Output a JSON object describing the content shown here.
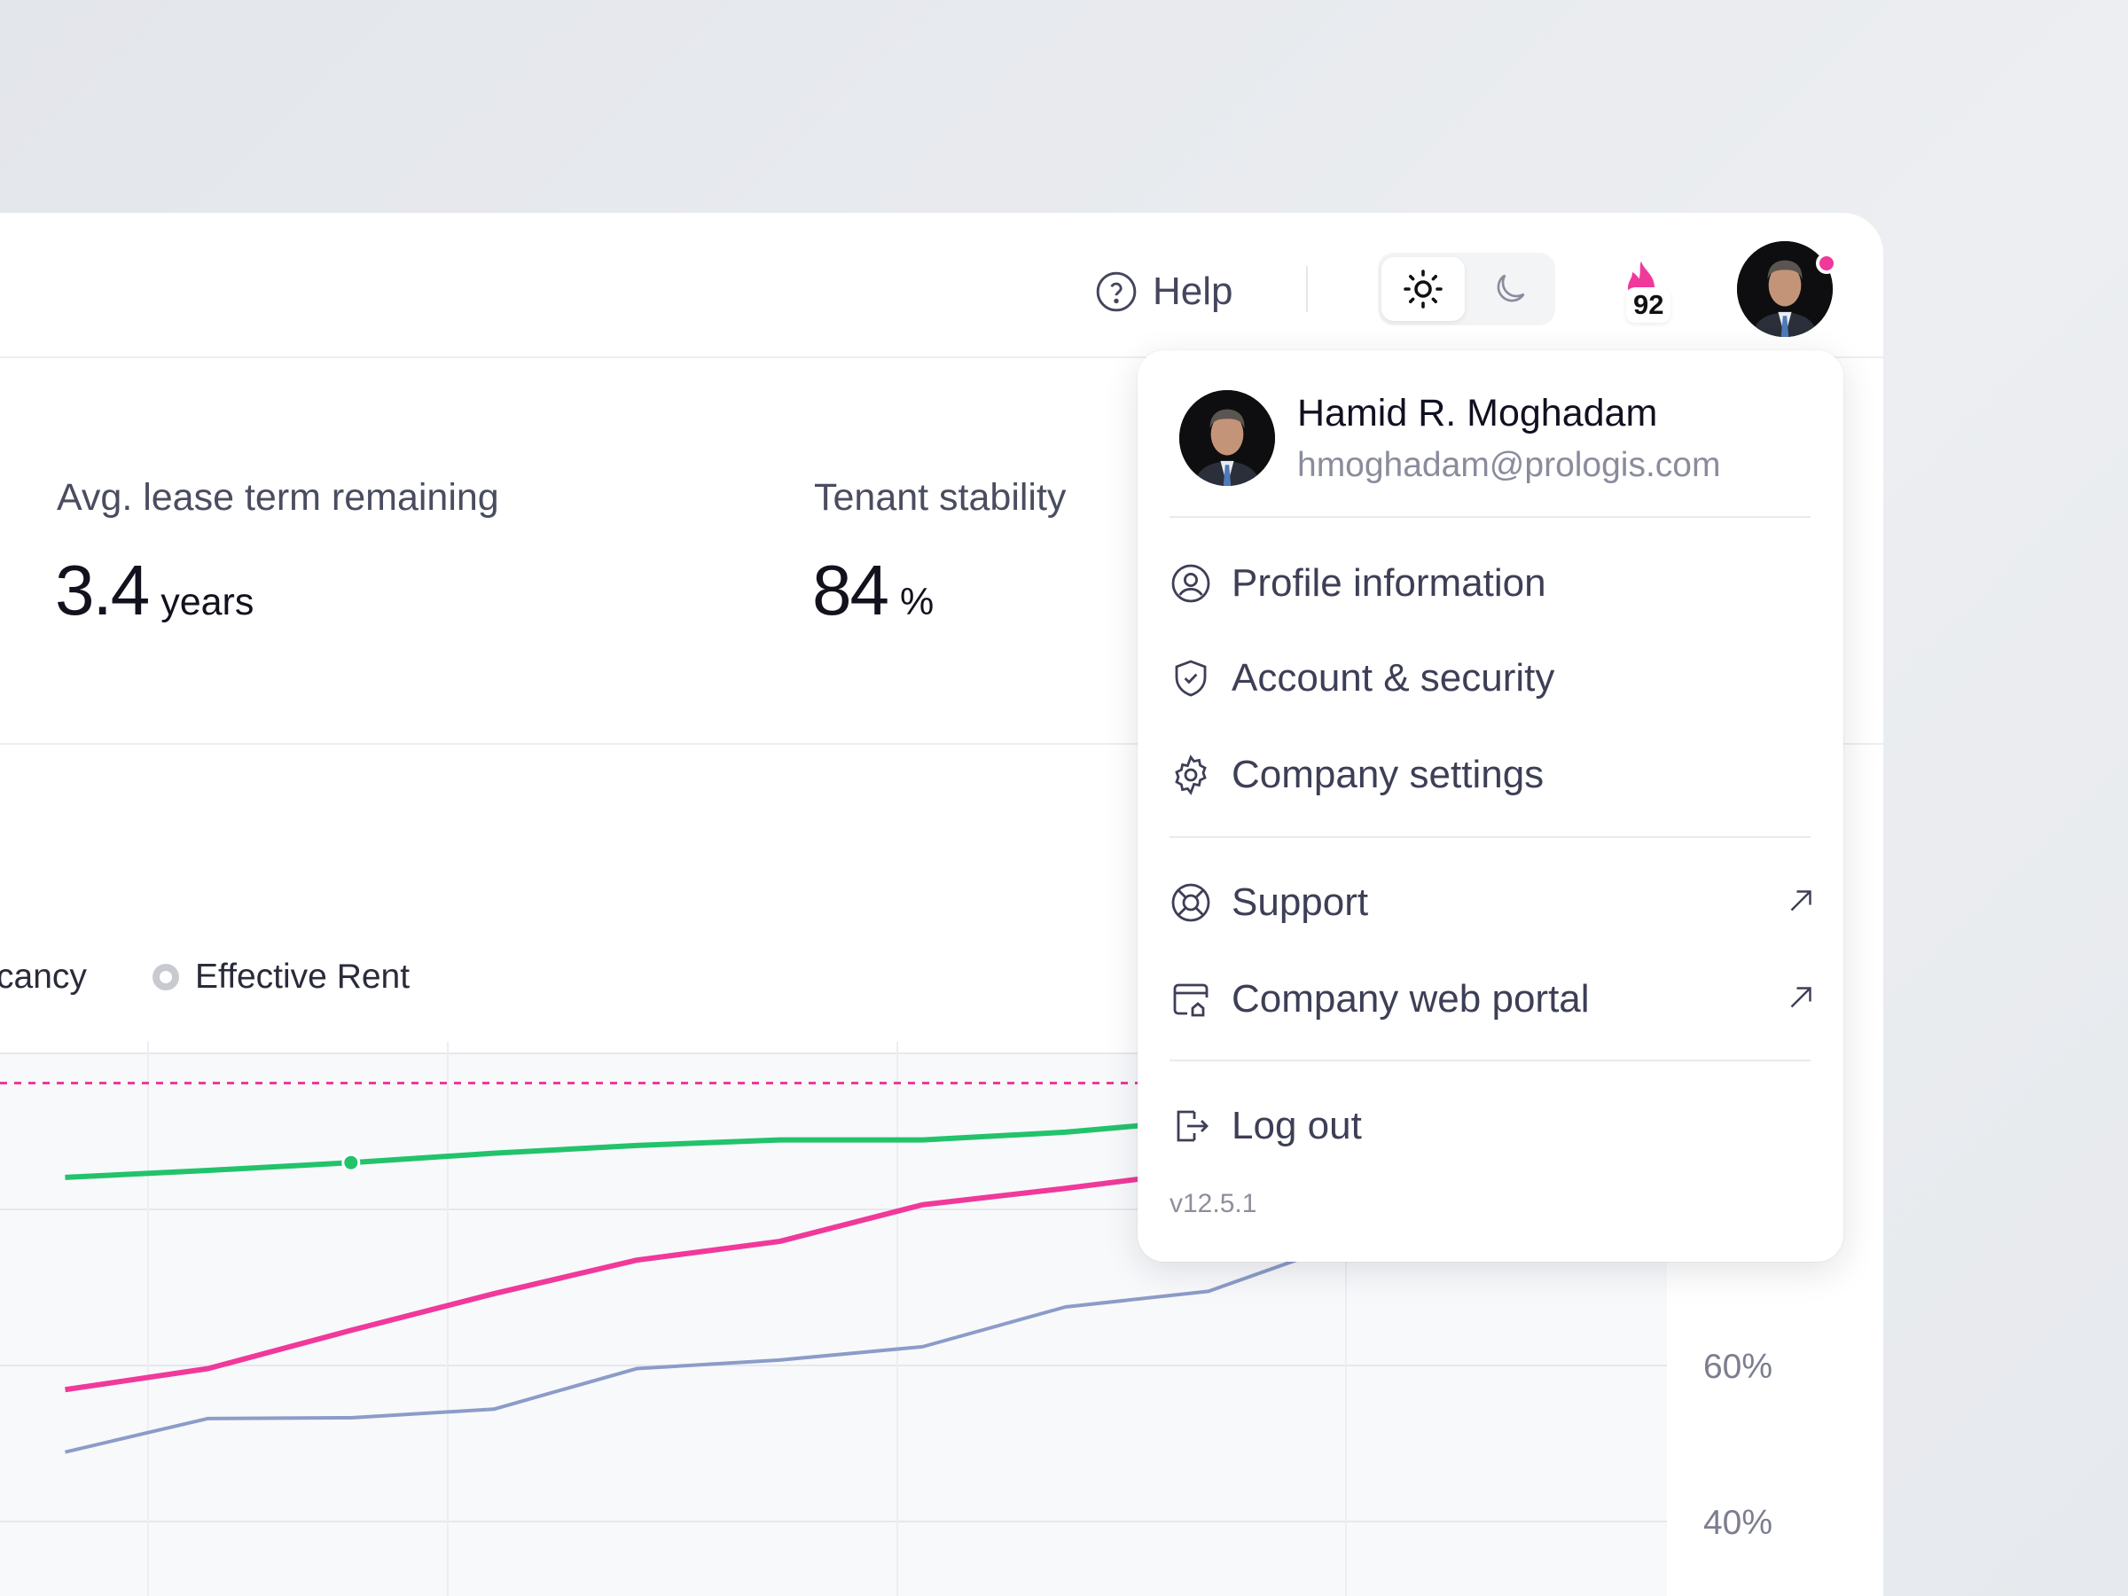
{
  "header": {
    "help_label": "Help",
    "theme": {
      "active": "light",
      "options": [
        "light",
        "dark"
      ]
    },
    "streak_count": "92",
    "notification_dot_color": "#f0399a"
  },
  "stats": [
    {
      "label": "Avg. lease term remaining",
      "value": "3.4",
      "unit": "years"
    },
    {
      "label": "Tenant stability",
      "value": "84",
      "unit": "%"
    }
  ],
  "legend": [
    {
      "label": "cancy"
    },
    {
      "label": "Effective Rent"
    }
  ],
  "user_menu": {
    "name": "Hamid R. Moghadam",
    "email": "hmoghadam@prologis.com",
    "items": [
      {
        "label": "Profile information",
        "icon": "user-circle-icon"
      },
      {
        "label": "Account & security",
        "icon": "shield-check-icon"
      },
      {
        "label": "Company settings",
        "icon": "gear-icon"
      },
      {
        "label": "Support",
        "icon": "lifebuoy-icon",
        "external": true
      },
      {
        "label": "Company web portal",
        "icon": "browser-icon",
        "external": true
      },
      {
        "label": "Log out",
        "icon": "logout-icon"
      }
    ],
    "version": "v12.5.1"
  },
  "chart_data": {
    "type": "line",
    "y_tick_labels": [
      "60%",
      "40%"
    ],
    "grid": true,
    "x": [
      0,
      1,
      2,
      3,
      4,
      5,
      6,
      7,
      8,
      9
    ],
    "series": [
      {
        "color": "#22c36b",
        "values": [
          84.1,
          85.0,
          86.0,
          87.2,
          88.2,
          88.9,
          88.9,
          89.9,
          91.5,
          null
        ],
        "highlight_index": 2
      },
      {
        "color": "#f0399a",
        "values": [
          56.9,
          59.6,
          64.5,
          69.2,
          73.5,
          75.9,
          80.6,
          82.7,
          85.0,
          null
        ]
      },
      {
        "color": "#8c9cc8",
        "values": [
          48.9,
          53.2,
          53.3,
          54.4,
          59.6,
          60.7,
          62.4,
          67.5,
          69.5,
          76.0
        ]
      }
    ],
    "reference_line": {
      "value": 96.2,
      "color": "#f0399a",
      "style": "dashed"
    }
  }
}
